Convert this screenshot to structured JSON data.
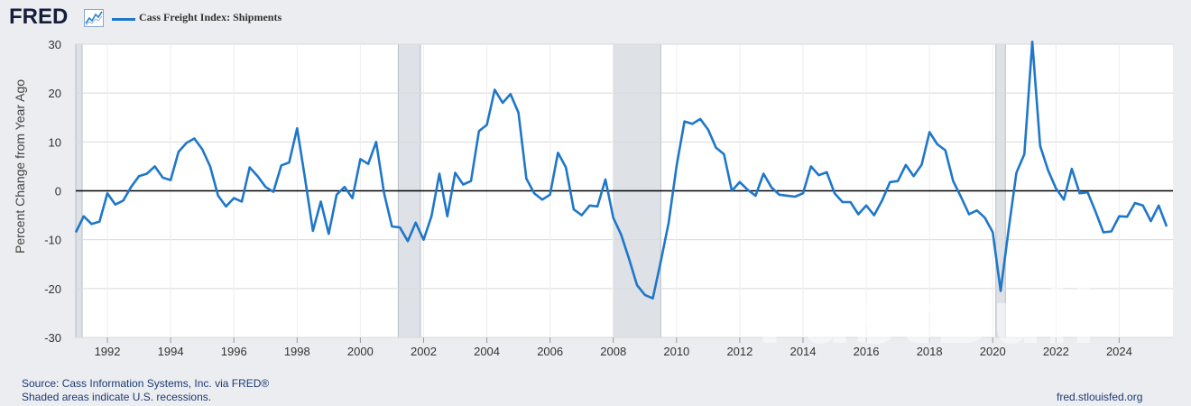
{
  "header": {
    "logo_text": "FRED",
    "logo_icon": "fred-chart-icon",
    "series_label": "Cass Freight Index: Shipments"
  },
  "colors": {
    "series": "#1f77c9",
    "background": "#ecedf0",
    "plot": "#ffffff",
    "recession": "#dee1e6",
    "zero_line": "#000000",
    "grid": "#d9d9d9"
  },
  "footer": {
    "source": "Source: Cass Information Systems, Inc. via FRED®",
    "note": "Shaded areas indicate U.S. recessions.",
    "url": "fred.stlouisfed.org"
  },
  "watermark": "FastBull",
  "chart_data": {
    "type": "line",
    "title": "Cass Freight Index: Shipments",
    "xlabel": "",
    "ylabel": "Percent Change from Year Ago",
    "ylim": [
      -30,
      30
    ],
    "xlim": [
      1991.0,
      2025.7
    ],
    "yticks": [
      -30,
      -20,
      -10,
      0,
      10,
      20,
      30
    ],
    "xticks": [
      1992,
      1994,
      1996,
      1998,
      2000,
      2002,
      2004,
      2006,
      2008,
      2010,
      2012,
      2014,
      2016,
      2018,
      2020,
      2022,
      2024
    ],
    "grid": true,
    "legend": "top-left",
    "recessions": [
      [
        1990.6,
        1991.2
      ],
      [
        2001.2,
        2001.9
      ],
      [
        2008.0,
        2009.5
      ],
      [
        2020.1,
        2020.4
      ]
    ],
    "series": [
      {
        "name": "Cass Freight Index: Shipments",
        "x": [
          1991.0,
          1991.25,
          1991.5,
          1991.75,
          1992.0,
          1992.25,
          1992.5,
          1992.75,
          1993.0,
          1993.25,
          1993.5,
          1993.75,
          1994.0,
          1994.25,
          1994.5,
          1994.75,
          1995.0,
          1995.25,
          1995.5,
          1995.75,
          1996.0,
          1996.25,
          1996.5,
          1996.75,
          1997.0,
          1997.25,
          1997.5,
          1997.75,
          1998.0,
          1998.25,
          1998.5,
          1998.75,
          1999.0,
          1999.25,
          1999.5,
          1999.75,
          2000.0,
          2000.25,
          2000.5,
          2000.75,
          2001.0,
          2001.25,
          2001.5,
          2001.75,
          2002.0,
          2002.25,
          2002.5,
          2002.75,
          2003.0,
          2003.25,
          2003.5,
          2003.75,
          2004.0,
          2004.25,
          2004.5,
          2004.75,
          2005.0,
          2005.25,
          2005.5,
          2005.75,
          2006.0,
          2006.25,
          2006.5,
          2006.75,
          2007.0,
          2007.25,
          2007.5,
          2007.75,
          2008.0,
          2008.25,
          2008.5,
          2008.75,
          2009.0,
          2009.25,
          2009.5,
          2009.75,
          2010.0,
          2010.25,
          2010.5,
          2010.75,
          2011.0,
          2011.25,
          2011.5,
          2011.75,
          2012.0,
          2012.25,
          2012.5,
          2012.75,
          2013.0,
          2013.25,
          2013.5,
          2013.75,
          2014.0,
          2014.25,
          2014.5,
          2014.75,
          2015.0,
          2015.25,
          2015.5,
          2015.75,
          2016.0,
          2016.25,
          2016.5,
          2016.75,
          2017.0,
          2017.25,
          2017.5,
          2017.75,
          2018.0,
          2018.25,
          2018.5,
          2018.75,
          2019.0,
          2019.25,
          2019.5,
          2019.75,
          2020.0,
          2020.25,
          2020.5,
          2020.75,
          2021.0,
          2021.25,
          2021.5,
          2021.75,
          2022.0,
          2022.25,
          2022.5,
          2022.75,
          2023.0,
          2023.25,
          2023.5,
          2023.75,
          2024.0,
          2024.25,
          2024.5,
          2024.75,
          2025.0,
          2025.25,
          2025.5
        ],
        "values": [
          -8.5,
          -5.2,
          -6.8,
          -6.3,
          -0.5,
          -2.8,
          -2.0,
          0.8,
          3.0,
          3.5,
          5.0,
          2.7,
          2.2,
          8.0,
          9.8,
          10.7,
          8.5,
          5.0,
          -1.0,
          -3.2,
          -1.5,
          -2.2,
          4.8,
          3.0,
          0.8,
          -0.2,
          5.2,
          5.8,
          12.8,
          2.5,
          -8.2,
          -2.2,
          -8.8,
          -0.8,
          0.8,
          -1.5,
          6.5,
          5.5,
          10.0,
          -0.5,
          -7.3,
          -7.5,
          -10.3,
          -6.5,
          -10.0,
          -5.2,
          3.5,
          -5.2,
          3.7,
          1.3,
          2.0,
          12.2,
          13.5,
          20.7,
          18.0,
          19.8,
          16.0,
          2.5,
          -0.5,
          -1.8,
          -0.8,
          7.8,
          4.8,
          -3.8,
          -5.0,
          -3.0,
          -3.2,
          2.3,
          -5.5,
          -9.0,
          -14.0,
          -19.3,
          -21.3,
          -22.0,
          -14.5,
          -6.5,
          5.0,
          14.2,
          13.7,
          14.7,
          12.5,
          8.8,
          7.5,
          0.0,
          1.8,
          0.2,
          -1.0,
          3.5,
          0.7,
          -0.8,
          -1.0,
          -1.2,
          -0.5,
          5.0,
          3.2,
          3.8,
          -0.5,
          -2.3,
          -2.3,
          -4.8,
          -3.0,
          -5.0,
          -2.0,
          1.8,
          2.0,
          5.3,
          3.0,
          5.3,
          12.0,
          9.5,
          8.3,
          2.0,
          -1.3,
          -4.8,
          -4.0,
          -5.5,
          -8.5,
          -20.5,
          -8.0,
          3.7,
          7.5,
          30.5,
          9.2,
          4.2,
          0.5,
          -1.8,
          4.5,
          -0.5,
          -0.3,
          -4.2,
          -8.5,
          -8.3,
          -5.2,
          -5.3,
          -2.5,
          -3.0,
          -6.2,
          -3.0,
          -7.3
        ]
      }
    ]
  }
}
